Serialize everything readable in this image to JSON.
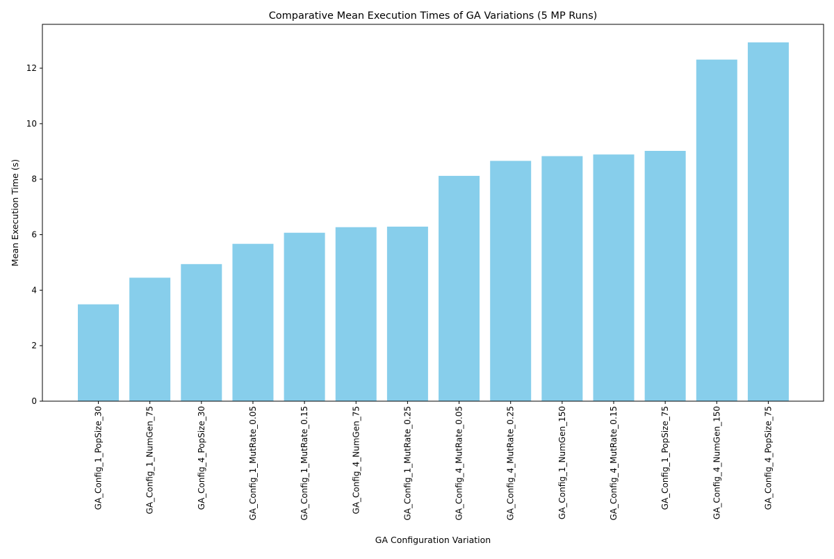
{
  "chart_data": {
    "type": "bar",
    "title": "Comparative Mean Execution Times of GA Variations (5 MP Runs)",
    "xlabel": "GA Configuration Variation",
    "ylabel": "Mean Execution Time (s)",
    "categories": [
      "GA_Config_1_PopSize_30",
      "GA_Config_1_NumGen_75",
      "GA_Config_4_PopSize_30",
      "GA_Config_1_MutRate_0.05",
      "GA_Config_1_MutRate_0.15",
      "GA_Config_4_NumGen_75",
      "GA_Config_1_MutRate_0.25",
      "GA_Config_4_MutRate_0.05",
      "GA_Config_4_MutRate_0.25",
      "GA_Config_1_NumGen_150",
      "GA_Config_4_MutRate_0.15",
      "GA_Config_1_PopSize_75",
      "GA_Config_4_NumGen_150",
      "GA_Config_4_PopSize_75"
    ],
    "values": [
      3.49,
      4.45,
      4.94,
      5.67,
      6.07,
      6.27,
      6.29,
      8.12,
      8.66,
      8.83,
      8.89,
      9.02,
      12.31,
      12.93
    ],
    "yticks": [
      0,
      2,
      4,
      6,
      8,
      10,
      12
    ],
    "ylim": [
      0,
      13.58
    ],
    "bar_color": "#87ceeb",
    "grid": false,
    "legend": "none"
  }
}
